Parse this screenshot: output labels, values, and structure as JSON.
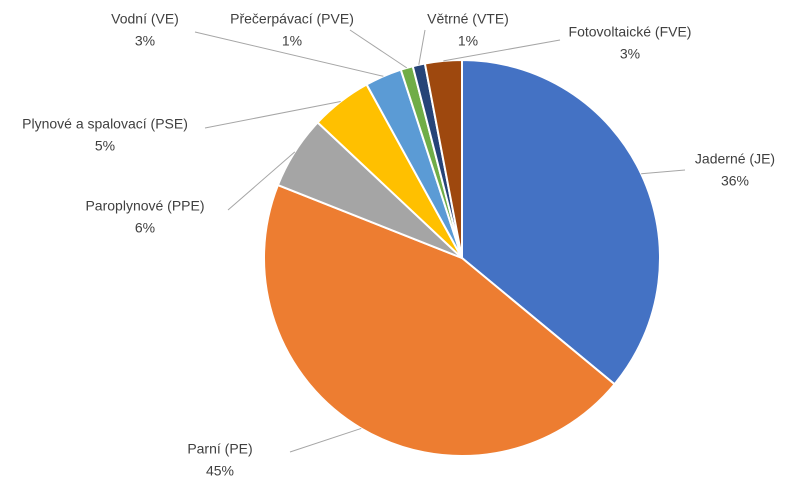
{
  "chart_data": {
    "type": "pie",
    "categories": [
      "Jaderné (JE)",
      "Parní (PE)",
      "Paroplynové (PPE)",
      "Plynové a spalovací (PSE)",
      "Vodní (VE)",
      "Přečerpávací (PVE)",
      "Větrné (VTE)",
      "Fotovoltaické (FVE)"
    ],
    "values": [
      36,
      45,
      6,
      5,
      3,
      1,
      1,
      3
    ],
    "value_labels": [
      "36%",
      "45%",
      "6%",
      "5%",
      "3%",
      "1%",
      "1%",
      "3%"
    ],
    "colors": [
      "#4472c4",
      "#ed7d31",
      "#a5a5a5",
      "#ffc000",
      "#5b9bd5",
      "#70ad47",
      "#264478",
      "#9e480e"
    ]
  }
}
